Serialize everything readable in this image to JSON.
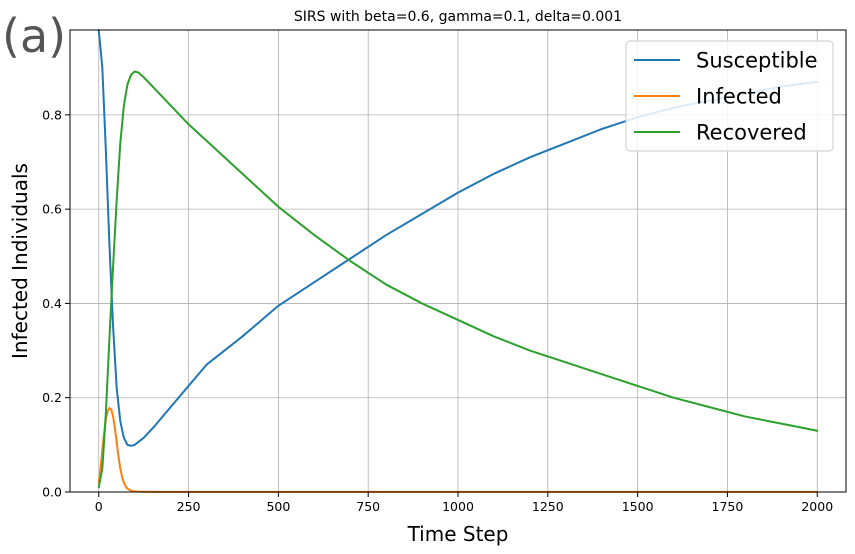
{
  "panel_label": "(a)",
  "chart_data": {
    "type": "line",
    "title": "SIRS with beta=0.6, gamma=0.1, delta=0.001",
    "xlabel": "Time Step",
    "ylabel": "Infected Individuals",
    "xlim": [
      -80,
      2080
    ],
    "ylim": [
      0,
      0.98
    ],
    "xticks": [
      0,
      250,
      500,
      750,
      1000,
      1250,
      1500,
      1750,
      2000
    ],
    "xtick_labels": [
      "0",
      "250",
      "500",
      "750",
      "1000",
      "1250",
      "1500",
      "1750",
      "2000"
    ],
    "yticks": [
      0,
      0.2,
      0.4,
      0.6,
      0.8
    ],
    "ytick_labels": [
      "0.0",
      "0.2",
      "0.4",
      "0.6",
      "0.8"
    ],
    "grid": true,
    "legend_position": "top-right",
    "series": [
      {
        "name": "Susceptible",
        "color": "#1f77b4",
        "x": [
          0,
          10,
          20,
          30,
          40,
          50,
          60,
          70,
          80,
          90,
          100,
          125,
          150,
          200,
          250,
          300,
          400,
          500,
          600,
          700,
          800,
          900,
          1000,
          1100,
          1200,
          1300,
          1400,
          1500,
          1600,
          1700,
          1800,
          1900,
          2000
        ],
        "y": [
          0.98,
          0.9,
          0.72,
          0.52,
          0.35,
          0.22,
          0.15,
          0.115,
          0.1,
          0.098,
          0.1,
          0.115,
          0.135,
          0.18,
          0.225,
          0.27,
          0.33,
          0.395,
          0.445,
          0.495,
          0.545,
          0.59,
          0.635,
          0.675,
          0.71,
          0.74,
          0.77,
          0.795,
          0.815,
          0.83,
          0.845,
          0.86,
          0.87
        ]
      },
      {
        "name": "Infected",
        "color": "#ff7f0e",
        "x": [
          0,
          5,
          10,
          15,
          20,
          25,
          30,
          35,
          40,
          45,
          50,
          55,
          60,
          65,
          70,
          75,
          80,
          90,
          100,
          125,
          150,
          200,
          500,
          1000,
          1500,
          2000
        ],
        "y": [
          0.02,
          0.05,
          0.09,
          0.125,
          0.155,
          0.172,
          0.178,
          0.175,
          0.16,
          0.135,
          0.105,
          0.075,
          0.05,
          0.032,
          0.02,
          0.012,
          0.007,
          0.003,
          0.001,
          0.0005,
          0.0003,
          0.0002,
          0.0002,
          0.0002,
          0.0002,
          0.0002
        ]
      },
      {
        "name": "Recovered",
        "color": "#2ca02c",
        "x": [
          0,
          10,
          20,
          30,
          40,
          50,
          60,
          70,
          80,
          90,
          100,
          110,
          125,
          150,
          200,
          250,
          300,
          400,
          500,
          600,
          700,
          800,
          900,
          1000,
          1100,
          1200,
          1300,
          1400,
          1500,
          1600,
          1700,
          1800,
          1900,
          2000
        ],
        "y": [
          0.01,
          0.05,
          0.17,
          0.33,
          0.48,
          0.62,
          0.74,
          0.82,
          0.865,
          0.885,
          0.892,
          0.89,
          0.88,
          0.86,
          0.82,
          0.78,
          0.745,
          0.675,
          0.605,
          0.545,
          0.49,
          0.44,
          0.4,
          0.365,
          0.33,
          0.3,
          0.275,
          0.25,
          0.225,
          0.2,
          0.18,
          0.16,
          0.145,
          0.13
        ]
      }
    ]
  }
}
